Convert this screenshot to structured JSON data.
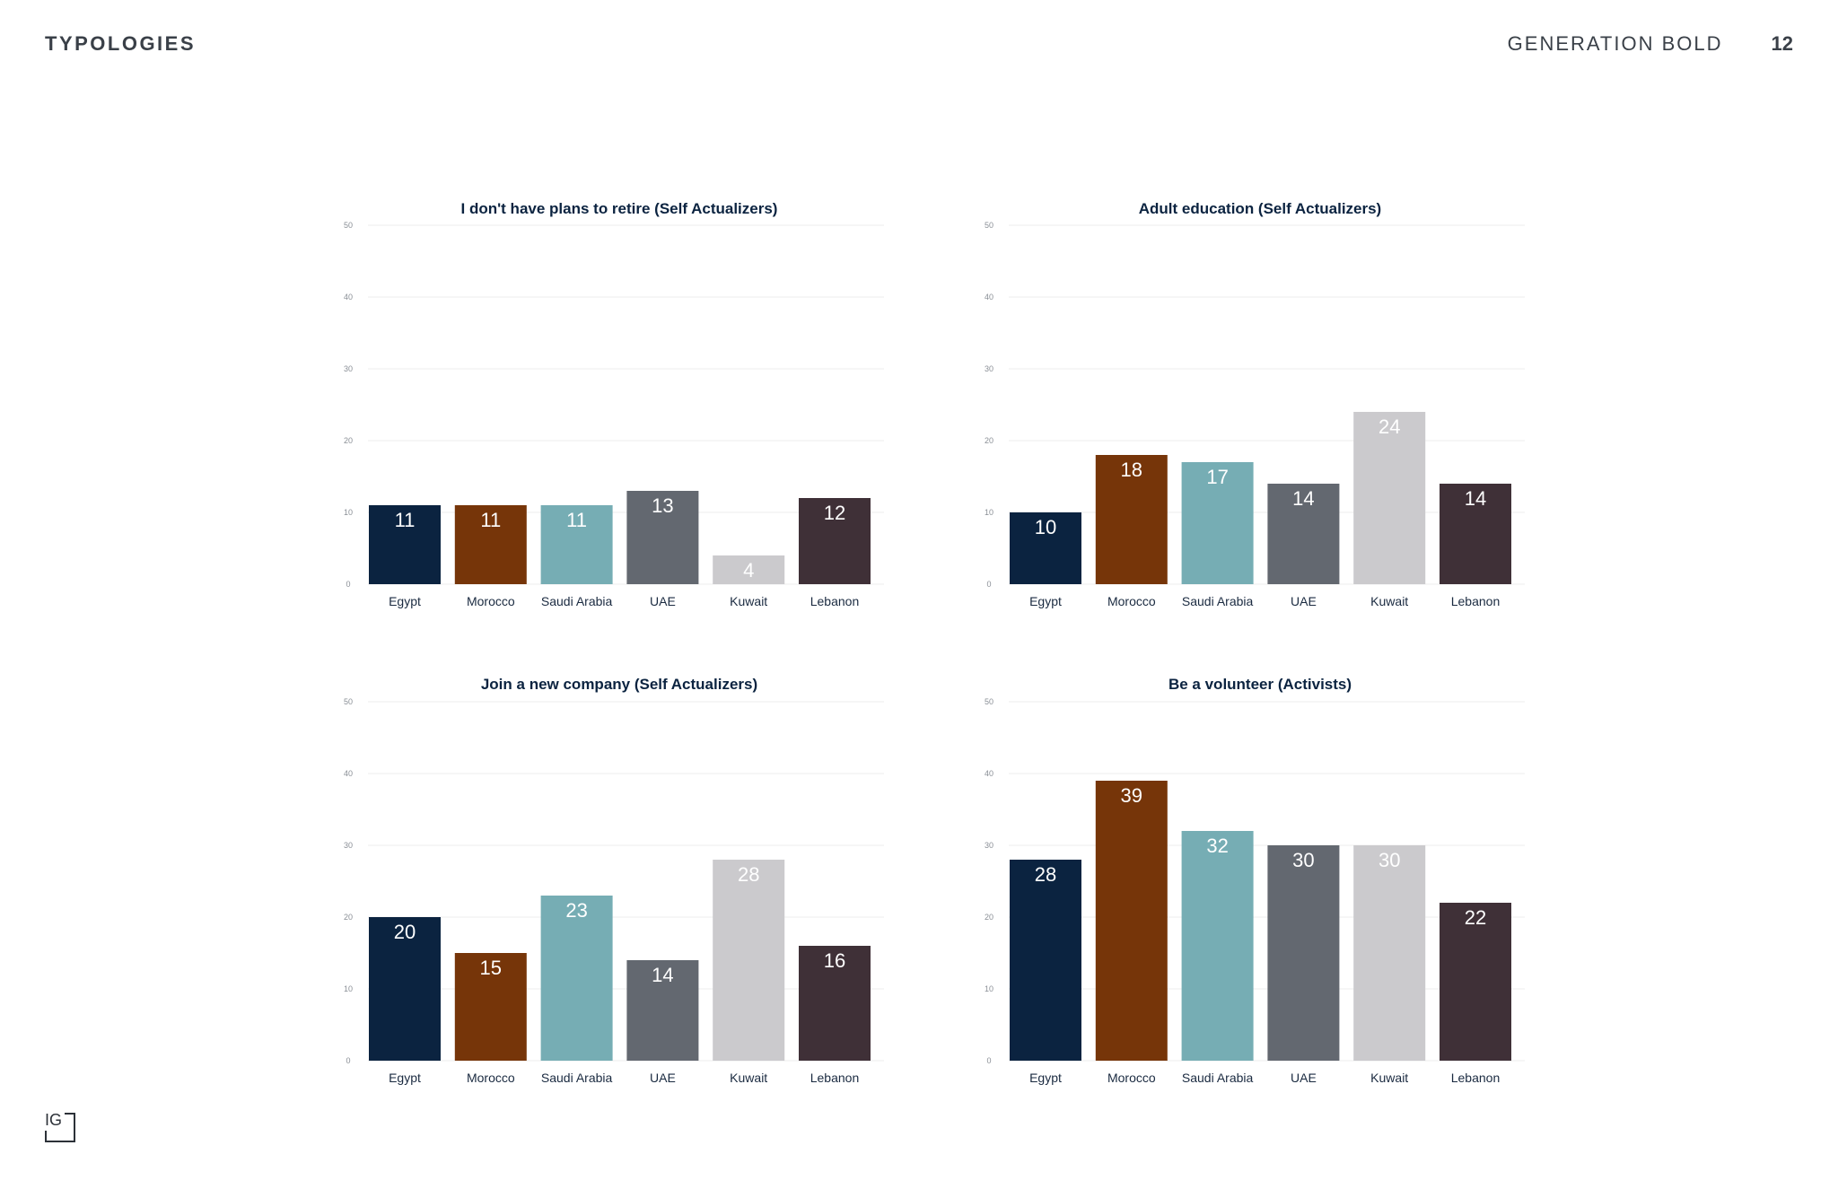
{
  "header": {
    "section": "TYPOLOGIES",
    "brand": "GENERATION BOLD",
    "page": "12"
  },
  "logo": {
    "text": "IG"
  },
  "colors": {
    "Egypt": "#0b2340",
    "Morocco": "#763509",
    "Saudi Arabia": "#76adb4",
    "UAE": "#636870",
    "Kuwait": "#cbcacd",
    "Lebanon": "#3f3037",
    "title": "#0b2340",
    "axis": "#8a8f96"
  },
  "chart_data": [
    {
      "type": "bar",
      "title": "I don't have plans to retire (Self Actualizers)",
      "categories": [
        "Egypt",
        "Morocco",
        "Saudi Arabia",
        "UAE",
        "Kuwait",
        "Lebanon"
      ],
      "values": [
        11,
        11,
        11,
        13,
        4,
        12
      ],
      "ylim": [
        0,
        50
      ],
      "yticks": [
        0,
        10,
        20,
        30,
        40,
        50
      ],
      "grid": true
    },
    {
      "type": "bar",
      "title": "Adult education (Self Actualizers)",
      "categories": [
        "Egypt",
        "Morocco",
        "Saudi Arabia",
        "UAE",
        "Kuwait",
        "Lebanon"
      ],
      "values": [
        10,
        18,
        17,
        14,
        24,
        14
      ],
      "ylim": [
        0,
        50
      ],
      "yticks": [
        0,
        10,
        20,
        30,
        40,
        50
      ],
      "grid": true
    },
    {
      "type": "bar",
      "title": "Join a new company (Self Actualizers)",
      "categories": [
        "Egypt",
        "Morocco",
        "Saudi Arabia",
        "UAE",
        "Kuwait",
        "Lebanon"
      ],
      "values": [
        20,
        15,
        23,
        14,
        28,
        16
      ],
      "ylim": [
        0,
        50
      ],
      "yticks": [
        0,
        10,
        20,
        30,
        40,
        50
      ],
      "grid": true
    },
    {
      "type": "bar",
      "title": "Be a volunteer (Activists)",
      "categories": [
        "Egypt",
        "Morocco",
        "Saudi Arabia",
        "UAE",
        "Kuwait",
        "Lebanon"
      ],
      "values": [
        28,
        39,
        32,
        30,
        30,
        22
      ],
      "ylim": [
        0,
        50
      ],
      "yticks": [
        0,
        10,
        20,
        30,
        40,
        50
      ],
      "grid": true
    }
  ]
}
